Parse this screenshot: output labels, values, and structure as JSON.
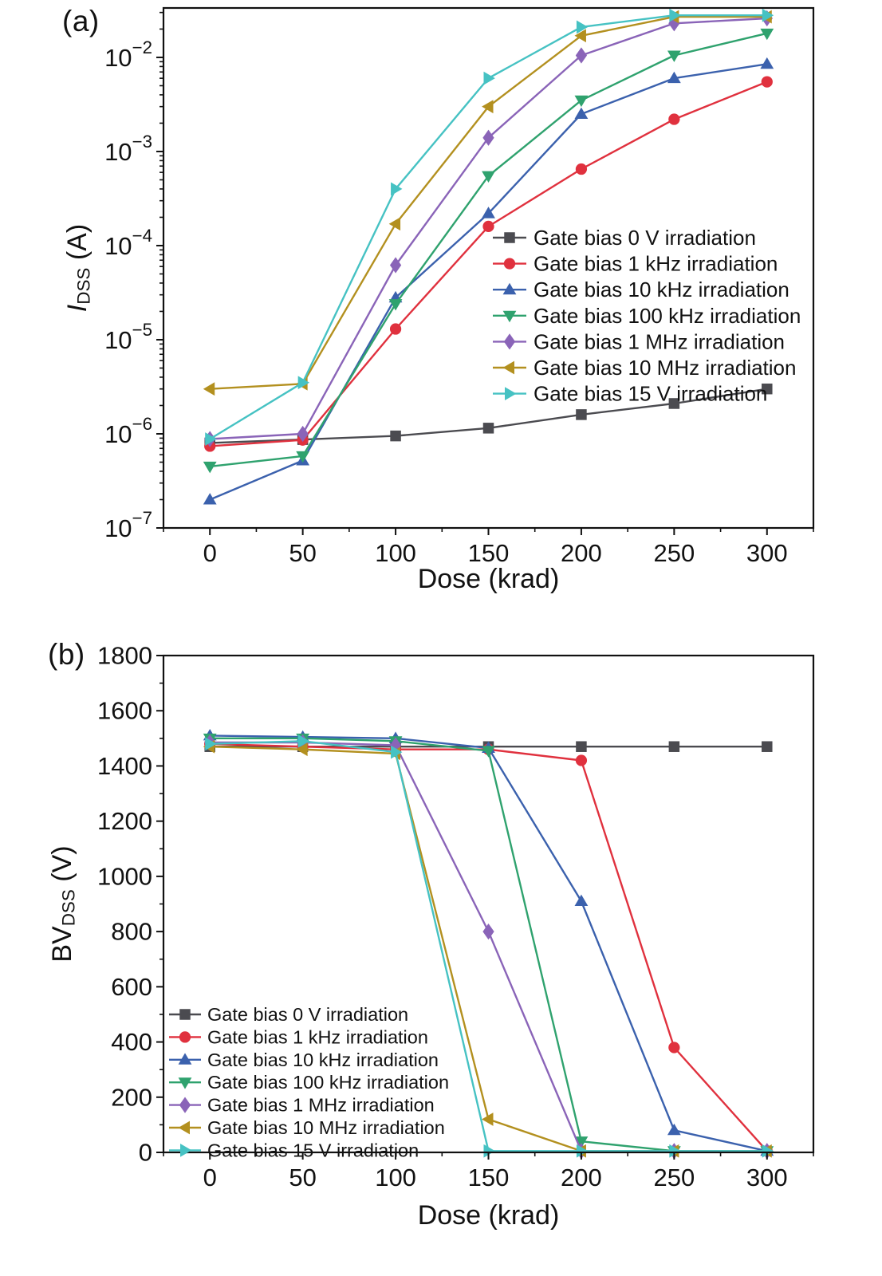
{
  "figure": {
    "panel_a_label": "(a)",
    "panel_b_label": "(b)",
    "text_color": "#111111"
  },
  "chart_data": [
    {
      "panel": "a",
      "type": "line",
      "title": "",
      "xlabel": "Dose (krad)",
      "ylabel": {
        "main": "I",
        "main_italic": true,
        "sub": "DSS",
        "suffix": " (A)"
      },
      "xlim": [
        -25,
        325
      ],
      "ylim": [
        1e-07,
        0.0335
      ],
      "yscale": "log",
      "grid": false,
      "xticks": [
        0,
        50,
        100,
        150,
        200,
        250,
        300
      ],
      "xminor_step": 25,
      "ytick_exponents": [
        -7,
        -6,
        -5,
        -4,
        -3,
        -2
      ],
      "legend_position": "middle-right",
      "x": [
        0,
        50,
        100,
        150,
        200,
        250,
        300
      ],
      "series": [
        {
          "name": "Gate bias 0 V irradiation",
          "marker": "square",
          "color": "#4b4b50",
          "values": [
            8e-07,
            8.7e-07,
            9.5e-07,
            1.15e-06,
            1.6e-06,
            2.1e-06,
            3e-06
          ]
        },
        {
          "name": "Gate bias 1 kHz irradiation",
          "marker": "circle",
          "color": "#e0313e",
          "values": [
            7.4e-07,
            8.6e-07,
            1.3e-05,
            0.00016,
            0.00065,
            0.0022,
            0.0055
          ]
        },
        {
          "name": "Gate bias 10 kHz irradiation",
          "marker": "triangle-up",
          "color": "#3b61ad",
          "values": [
            2e-07,
            5.2e-07,
            2.8e-05,
            0.00022,
            0.0025,
            0.006,
            0.0085
          ]
        },
        {
          "name": "Gate bias 100 kHz irradiation",
          "marker": "triangle-down",
          "color": "#2fa26e",
          "values": [
            4.5e-07,
            5.8e-07,
            2.4e-05,
            0.00055,
            0.0035,
            0.0105,
            0.018
          ]
        },
        {
          "name": "Gate bias 1 MHz irradiation",
          "marker": "diamond",
          "color": "#8a64b8",
          "values": [
            8.8e-07,
            1e-06,
            6.2e-05,
            0.0014,
            0.0105,
            0.023,
            0.026
          ]
        },
        {
          "name": "Gate bias 10 MHz irradiation",
          "marker": "triangle-left",
          "color": "#b3901f",
          "values": [
            3e-06,
            3.4e-06,
            0.00017,
            0.003,
            0.017,
            0.027,
            0.027
          ]
        },
        {
          "name": "Gate bias 15 V irradiation",
          "marker": "triangle-right",
          "color": "#46c2c3",
          "values": [
            8.8e-07,
            3.5e-06,
            0.0004,
            0.006,
            0.021,
            0.028,
            0.028
          ]
        }
      ]
    },
    {
      "panel": "b",
      "type": "line",
      "title": "",
      "xlabel": "Dose (krad)",
      "ylabel": {
        "main": "BV",
        "main_italic": false,
        "sub": "DSS",
        "suffix": " (V)"
      },
      "xlim": [
        -25,
        325
      ],
      "ylim": [
        0,
        1800
      ],
      "yscale": "linear",
      "grid": false,
      "xticks": [
        0,
        50,
        100,
        150,
        200,
        250,
        300
      ],
      "xminor_step": 25,
      "yticks": [
        0,
        200,
        400,
        600,
        800,
        1000,
        1200,
        1400,
        1600,
        1800
      ],
      "yminor_step": 100,
      "legend_position": "bottom-left",
      "x": [
        0,
        50,
        100,
        150,
        200,
        250,
        300
      ],
      "series": [
        {
          "name": "Gate bias 0 V irradiation",
          "marker": "square",
          "color": "#4b4b50",
          "values": [
            1470,
            1470,
            1470,
            1470,
            1470,
            1470,
            1470
          ]
        },
        {
          "name": "Gate bias 1 kHz irradiation",
          "marker": "circle",
          "color": "#e0313e",
          "values": [
            1480,
            1470,
            1460,
            1460,
            1420,
            380,
            5
          ]
        },
        {
          "name": "Gate bias 10 kHz irradiation",
          "marker": "triangle-up",
          "color": "#3b61ad",
          "values": [
            1510,
            1505,
            1500,
            1465,
            910,
            80,
            5
          ]
        },
        {
          "name": "Gate bias 100 kHz irradiation",
          "marker": "triangle-down",
          "color": "#2fa26e",
          "values": [
            1500,
            1500,
            1490,
            1455,
            40,
            5,
            5
          ]
        },
        {
          "name": "Gate bias 1 MHz irradiation",
          "marker": "diamond",
          "color": "#8a64b8",
          "values": [
            1485,
            1485,
            1475,
            800,
            5,
            5,
            5
          ]
        },
        {
          "name": "Gate bias 10 MHz irradiation",
          "marker": "triangle-left",
          "color": "#b3901f",
          "values": [
            1470,
            1460,
            1445,
            120,
            5,
            5,
            5
          ]
        },
        {
          "name": "Gate bias 15 V irradiation",
          "marker": "triangle-right",
          "color": "#46c2c3",
          "values": [
            1480,
            1490,
            1450,
            5,
            5,
            5,
            5
          ]
        }
      ]
    }
  ]
}
